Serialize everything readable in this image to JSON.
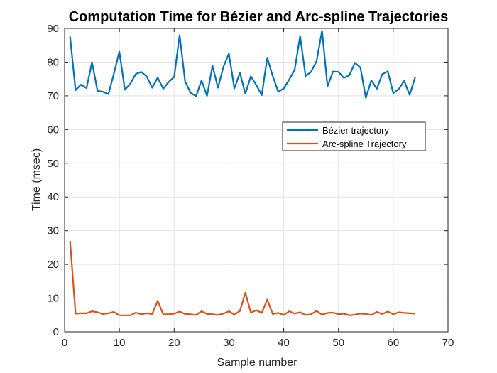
{
  "chart_data": {
    "type": "line",
    "title": "Computation Time for Bézier and Arc-spline Trajectories",
    "xlabel": "Sample number",
    "ylabel": "Time (msec)",
    "xlim": [
      0,
      70
    ],
    "ylim": [
      0,
      90
    ],
    "xticks": [
      0,
      10,
      20,
      30,
      40,
      50,
      60,
      70
    ],
    "yticks": [
      0,
      10,
      20,
      30,
      40,
      50,
      60,
      70,
      80,
      90
    ],
    "grid": true,
    "legend_position": "right-middle",
    "series": [
      {
        "name": "Bézier trajectory",
        "color": "#0072BD",
        "x": [
          1,
          2,
          3,
          4,
          5,
          6,
          7,
          8,
          9,
          10,
          11,
          12,
          13,
          14,
          15,
          16,
          17,
          18,
          19,
          20,
          21,
          22,
          23,
          24,
          25,
          26,
          27,
          28,
          29,
          30,
          31,
          32,
          33,
          34,
          35,
          36,
          37,
          38,
          39,
          40,
          41,
          42,
          43,
          44,
          45,
          46,
          47,
          48,
          49,
          50,
          51,
          52,
          53,
          54,
          55,
          56,
          57,
          58,
          59,
          60,
          61,
          62,
          63,
          64
        ],
        "values": [
          87.6,
          71.7,
          73.3,
          72.3,
          80.0,
          71.5,
          71.2,
          70.5,
          76.6,
          83.1,
          71.8,
          73.6,
          76.5,
          77.1,
          75.7,
          72.4,
          75.4,
          72.1,
          74.1,
          75.6,
          88.0,
          74.3,
          70.9,
          69.9,
          74.6,
          70.0,
          78.9,
          72.4,
          78.6,
          82.5,
          72.2,
          76.8,
          70.6,
          75.8,
          73.2,
          70.2,
          81.3,
          75.9,
          71.2,
          72.2,
          74.8,
          77.7,
          87.7,
          75.9,
          77.1,
          80.3,
          89.3,
          72.8,
          77.2,
          77.1,
          75.3,
          76.1,
          79.8,
          78.4,
          69.4,
          74.6,
          72.1,
          76.4,
          77.3,
          70.8,
          72.0,
          74.4,
          70.3,
          75.5
        ]
      },
      {
        "name": "Arc-spline Trajectory",
        "color": "#D95319",
        "x": [
          1,
          2,
          3,
          4,
          5,
          6,
          7,
          8,
          9,
          10,
          11,
          12,
          13,
          14,
          15,
          16,
          17,
          18,
          19,
          20,
          21,
          22,
          23,
          24,
          25,
          26,
          27,
          28,
          29,
          30,
          31,
          32,
          33,
          34,
          35,
          36,
          37,
          38,
          39,
          40,
          41,
          42,
          43,
          44,
          45,
          46,
          47,
          48,
          49,
          50,
          51,
          52,
          53,
          54,
          55,
          56,
          57,
          58,
          59,
          60,
          61,
          62,
          63,
          64
        ],
        "values": [
          27.0,
          5.4,
          5.5,
          5.5,
          6.1,
          5.8,
          5.3,
          5.5,
          5.9,
          4.9,
          4.9,
          4.9,
          5.7,
          5.2,
          5.5,
          5.3,
          9.2,
          5.2,
          5.2,
          5.4,
          6.0,
          5.3,
          5.2,
          5.0,
          6.1,
          5.3,
          5.2,
          5.0,
          5.4,
          6.1,
          5.1,
          6.2,
          11.6,
          5.7,
          6.4,
          5.6,
          9.6,
          5.3,
          5.6,
          5.0,
          6.1,
          5.4,
          5.8,
          5.0,
          5.2,
          6.2,
          5.1,
          5.6,
          5.7,
          5.2,
          5.4,
          4.9,
          5.1,
          5.4,
          5.3,
          5.0,
          5.9,
          5.3,
          6.0,
          5.2,
          5.8,
          5.6,
          5.5,
          5.4
        ]
      }
    ]
  }
}
